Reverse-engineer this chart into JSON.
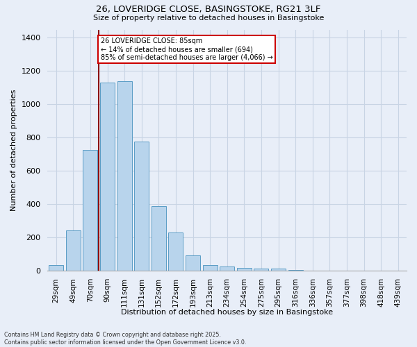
{
  "title_line1": "26, LOVERIDGE CLOSE, BASINGSTOKE, RG21 3LF",
  "title_line2": "Size of property relative to detached houses in Basingstoke",
  "xlabel": "Distribution of detached houses by size in Basingstoke",
  "ylabel": "Number of detached properties",
  "categories": [
    "29sqm",
    "49sqm",
    "70sqm",
    "90sqm",
    "111sqm",
    "131sqm",
    "152sqm",
    "172sqm",
    "193sqm",
    "213sqm",
    "234sqm",
    "254sqm",
    "275sqm",
    "295sqm",
    "316sqm",
    "336sqm",
    "357sqm",
    "377sqm",
    "398sqm",
    "418sqm",
    "439sqm"
  ],
  "values": [
    35,
    245,
    725,
    1130,
    1140,
    775,
    390,
    230,
    95,
    35,
    25,
    20,
    15,
    15,
    5,
    0,
    0,
    0,
    0,
    0,
    0
  ],
  "bar_color": "#b8d4ec",
  "bar_edge_color": "#5a9cc5",
  "grid_color": "#c8d4e4",
  "background_color": "#e8eef8",
  "vline_x_index": 2.5,
  "vline_color": "#8b0000",
  "annotation_text": "26 LOVERIDGE CLOSE: 85sqm\n← 14% of detached houses are smaller (694)\n85% of semi-detached houses are larger (4,066) →",
  "annotation_box_color": "#cc0000",
  "footnote_line1": "Contains HM Land Registry data © Crown copyright and database right 2025.",
  "footnote_line2": "Contains public sector information licensed under the Open Government Licence v3.0.",
  "ylim": [
    0,
    1450
  ],
  "yticks": [
    0,
    200,
    400,
    600,
    800,
    1000,
    1200,
    1400
  ]
}
